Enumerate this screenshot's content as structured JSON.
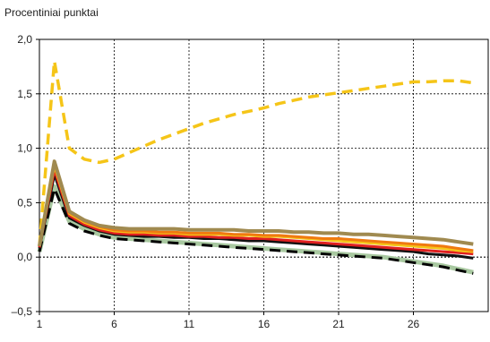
{
  "chart_data": {
    "type": "line",
    "title": "",
    "xlabel": "",
    "ylabel": "Procentiniai punktai",
    "x": [
      1,
      2,
      3,
      4,
      5,
      6,
      7,
      8,
      9,
      10,
      11,
      12,
      13,
      14,
      15,
      16,
      17,
      18,
      19,
      20,
      21,
      22,
      23,
      24,
      25,
      26,
      27,
      28,
      29,
      30
    ],
    "xticks": [
      1,
      6,
      11,
      16,
      21,
      26
    ],
    "yticks": [
      "2,0",
      "1,5",
      "1,0",
      "0,5",
      "0,0",
      "–0,5"
    ],
    "ytick_values": [
      2.0,
      1.5,
      1.0,
      0.5,
      0.0,
      -0.5
    ],
    "xlim": [
      1,
      31
    ],
    "ylim": [
      -0.5,
      2.0
    ],
    "grid": true,
    "legend": "none",
    "series": [
      {
        "color": "#f5c518",
        "dashed": true,
        "width": 3.5,
        "values": [
          0.1,
          1.8,
          1.0,
          0.9,
          0.87,
          0.9,
          0.96,
          1.02,
          1.08,
          1.13,
          1.18,
          1.23,
          1.27,
          1.31,
          1.34,
          1.37,
          1.41,
          1.44,
          1.47,
          1.49,
          1.51,
          1.53,
          1.55,
          1.57,
          1.59,
          1.61,
          1.61,
          1.62,
          1.62,
          1.6
        ]
      },
      {
        "color": "#a8c8a0",
        "dashed": false,
        "width": 5,
        "values": [
          0.05,
          0.65,
          0.33,
          0.26,
          0.21,
          0.18,
          0.17,
          0.16,
          0.15,
          0.14,
          0.13,
          0.12,
          0.11,
          0.1,
          0.09,
          0.08,
          0.07,
          0.06,
          0.05,
          0.04,
          0.03,
          0.02,
          0.01,
          0.0,
          -0.02,
          -0.04,
          -0.06,
          -0.08,
          -0.11,
          -0.14
        ]
      },
      {
        "color": "#000000",
        "dashed": true,
        "width": 3,
        "values": [
          0.05,
          0.63,
          0.31,
          0.24,
          0.2,
          0.17,
          0.16,
          0.15,
          0.14,
          0.13,
          0.12,
          0.11,
          0.1,
          0.09,
          0.08,
          0.07,
          0.06,
          0.05,
          0.04,
          0.03,
          0.02,
          0.01,
          0.0,
          -0.01,
          -0.03,
          -0.05,
          -0.07,
          -0.09,
          -0.12,
          -0.15
        ]
      },
      {
        "color": "#111111",
        "dashed": false,
        "width": 3,
        "values": [
          0.08,
          0.76,
          0.36,
          0.29,
          0.24,
          0.21,
          0.2,
          0.19,
          0.19,
          0.18,
          0.18,
          0.17,
          0.17,
          0.16,
          0.15,
          0.15,
          0.14,
          0.13,
          0.12,
          0.11,
          0.1,
          0.09,
          0.08,
          0.07,
          0.06,
          0.05,
          0.03,
          0.02,
          0.01,
          -0.01
        ]
      },
      {
        "color": "#e02020",
        "dashed": false,
        "width": 3,
        "values": [
          0.09,
          0.8,
          0.38,
          0.3,
          0.25,
          0.22,
          0.21,
          0.21,
          0.2,
          0.2,
          0.19,
          0.19,
          0.18,
          0.18,
          0.17,
          0.17,
          0.16,
          0.15,
          0.14,
          0.13,
          0.12,
          0.11,
          0.1,
          0.09,
          0.08,
          0.07,
          0.06,
          0.05,
          0.04,
          0.03
        ]
      },
      {
        "color": "#f5c518",
        "dashed": false,
        "width": 3,
        "values": [
          0.1,
          0.84,
          0.4,
          0.32,
          0.27,
          0.24,
          0.23,
          0.23,
          0.22,
          0.22,
          0.21,
          0.21,
          0.21,
          0.2,
          0.2,
          0.19,
          0.19,
          0.18,
          0.17,
          0.16,
          0.15,
          0.14,
          0.13,
          0.12,
          0.11,
          0.1,
          0.09,
          0.08,
          0.06,
          0.05
        ]
      },
      {
        "color": "#f07a10",
        "dashed": false,
        "width": 3,
        "values": [
          0.1,
          0.86,
          0.41,
          0.33,
          0.28,
          0.25,
          0.24,
          0.24,
          0.23,
          0.23,
          0.22,
          0.22,
          0.22,
          0.21,
          0.21,
          0.2,
          0.2,
          0.19,
          0.18,
          0.17,
          0.17,
          0.16,
          0.15,
          0.14,
          0.13,
          0.12,
          0.11,
          0.1,
          0.08,
          0.06
        ]
      },
      {
        "color": "#a08a50",
        "dashed": false,
        "width": 4,
        "values": [
          0.1,
          0.88,
          0.42,
          0.34,
          0.29,
          0.27,
          0.26,
          0.26,
          0.26,
          0.26,
          0.25,
          0.25,
          0.25,
          0.25,
          0.24,
          0.24,
          0.24,
          0.23,
          0.23,
          0.22,
          0.22,
          0.21,
          0.21,
          0.2,
          0.19,
          0.18,
          0.17,
          0.16,
          0.14,
          0.12
        ]
      }
    ]
  }
}
